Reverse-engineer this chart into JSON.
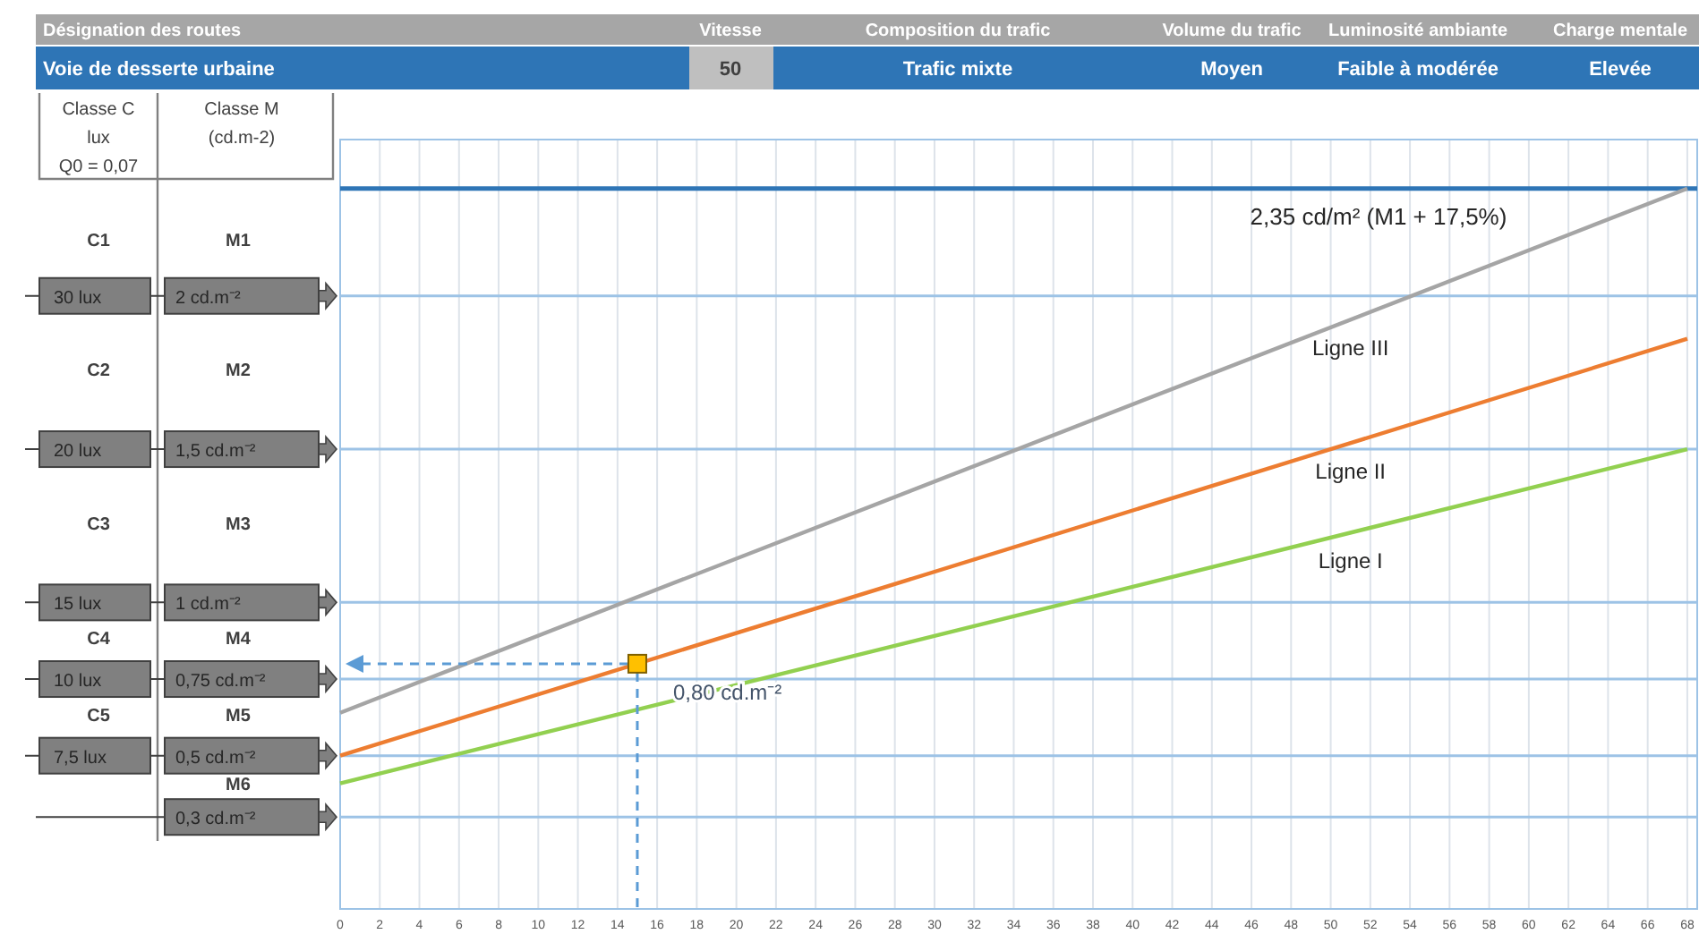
{
  "chart_data": {
    "type": "line",
    "xlim": [
      0,
      68.5
    ],
    "ylim": [
      0,
      2.51
    ],
    "xticks": [
      0,
      2,
      4,
      6,
      8,
      10,
      12,
      14,
      16,
      18,
      20,
      22,
      24,
      26,
      28,
      30,
      32,
      34,
      36,
      38,
      40,
      42,
      44,
      46,
      48,
      50,
      52,
      54,
      56,
      58,
      60,
      62,
      64,
      66,
      68
    ],
    "yticks": [
      {
        "value": 2,
        "label": "2 cd.m⁻²"
      },
      {
        "value": 1.5,
        "label": "1,5 cd.m⁻²"
      },
      {
        "value": 1,
        "label": "1 cd.m⁻²"
      },
      {
        "value": 0.75,
        "label": "0,75 cd.m⁻²"
      },
      {
        "value": 0.5,
        "label": "0,5 cd.m⁻²"
      },
      {
        "value": 0.3,
        "label": "0,3 cd.m⁻²"
      }
    ],
    "grid": true,
    "series": [
      {
        "name": "Ligne I",
        "color": "#92d050",
        "x": [
          0,
          68
        ],
        "values": [
          0.41,
          1.5
        ]
      },
      {
        "name": "Ligne II",
        "color": "#ed7d31",
        "x": [
          0,
          68
        ],
        "values": [
          0.5,
          1.86
        ]
      },
      {
        "name": "Ligne III",
        "color": "#a5a5a5",
        "x": [
          0,
          68
        ],
        "values": [
          0.64,
          2.35
        ]
      },
      {
        "type": "scatter",
        "color": "#ffc000",
        "marker": "square",
        "x": [
          15
        ],
        "values": [
          0.8
        ]
      }
    ],
    "ref_lines": [
      {
        "axis": "y",
        "value": 2.35,
        "label": "2,35 cd/m² (M1 + 17,5%)",
        "color": "#2e75b6"
      }
    ],
    "annotations": [
      "Désignation des routes",
      "Vitesse",
      "Composition du trafic",
      "Volume du trafic",
      "Luminosité ambiante",
      "Charge mentale",
      "Voie de desserte urbaine",
      "50",
      "Trafic mixte",
      "Moyen",
      "Faible à modérée",
      "Elevée",
      "Classe C",
      "lux",
      "Q0 = 0,07",
      "Classe M",
      "(cd.m-2)",
      "C1",
      "C2",
      "C3",
      "C4",
      "C5",
      "M1",
      "M2",
      "M3",
      "M4",
      "M5",
      "M6",
      "30 lux",
      "20 lux",
      "15 lux",
      "10 lux",
      "7,5 lux",
      {
        "text": "0,80 cd.m⁻²",
        "x": 15,
        "y": 0.8
      }
    ]
  }
}
